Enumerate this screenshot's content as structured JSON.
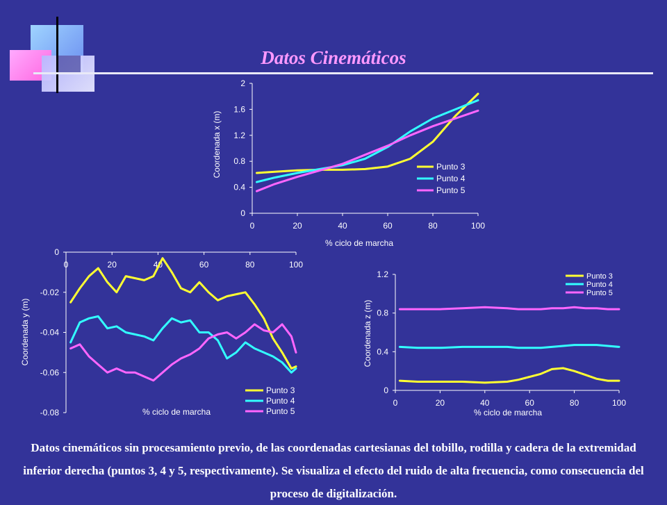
{
  "slide": {
    "title": "Datos Cinemáticos",
    "caption": "Datos cinemáticos sin procesamiento previo, de las coordenadas cartesianas del tobillo, rodilla y cadera de la extremidad inferior derecha (puntos 3, 4 y 5, respectivamente). Se visualiza el efecto del ruido de alta frecuencia, como consecuencia del proceso de digitalización.",
    "colors": {
      "background": "#333399",
      "title": "#ff99ff",
      "text": "#ffffff"
    }
  },
  "chart_data": [
    {
      "type": "line",
      "title": "",
      "xlabel": "% ciclo de marcha",
      "ylabel": "Coordenada x (m)",
      "xlim": [
        0,
        100
      ],
      "ylim": [
        0,
        2
      ],
      "xticks": [
        0,
        20,
        40,
        60,
        80,
        100
      ],
      "yticks": [
        0,
        0.4,
        0.8,
        1.2,
        1.6,
        2
      ],
      "xtick_labels": [
        "0",
        "20",
        "40",
        "60",
        "80",
        "100"
      ],
      "ytick_labels": [
        "0",
        "0.4",
        "0.8",
        "1.2",
        "1.6",
        "2"
      ],
      "grid": false,
      "legend_position": "right",
      "x": [
        2,
        10,
        20,
        30,
        40,
        50,
        60,
        70,
        80,
        90,
        100
      ],
      "series": [
        {
          "name": "Punto 3",
          "color": "#ffff33",
          "values": [
            0.62,
            0.64,
            0.66,
            0.67,
            0.67,
            0.68,
            0.72,
            0.84,
            1.1,
            1.5,
            1.84
          ]
        },
        {
          "name": "Punto 4",
          "color": "#33ffff",
          "values": [
            0.48,
            0.55,
            0.62,
            0.68,
            0.74,
            0.84,
            1.02,
            1.26,
            1.46,
            1.6,
            1.74
          ]
        },
        {
          "name": "Punto 5",
          "color": "#ff66ff",
          "values": [
            0.34,
            0.45,
            0.56,
            0.66,
            0.76,
            0.9,
            1.04,
            1.2,
            1.34,
            1.46,
            1.58
          ]
        }
      ]
    },
    {
      "type": "line",
      "title": "",
      "xlabel": "% ciclo de marcha",
      "ylabel": "Coordenada y (m)",
      "xlim": [
        0,
        100
      ],
      "ylim": [
        -0.08,
        0
      ],
      "xticks": [
        0,
        20,
        40,
        60,
        80,
        100
      ],
      "yticks": [
        0,
        -0.02,
        -0.04,
        -0.06,
        -0.08
      ],
      "xtick_labels": [
        "0",
        "20",
        "40",
        "60",
        "80",
        "100"
      ],
      "ytick_labels": [
        "0",
        "-0.02",
        "-0.04",
        "-0.06",
        "-0.08"
      ],
      "grid": false,
      "legend_position": "bottom-right",
      "x": [
        2,
        6,
        10,
        14,
        18,
        22,
        26,
        30,
        34,
        38,
        42,
        46,
        50,
        54,
        58,
        62,
        66,
        70,
        74,
        78,
        82,
        86,
        90,
        94,
        98,
        100
      ],
      "series": [
        {
          "name": "Punto 3",
          "color": "#ffff33",
          "values": [
            -0.025,
            -0.018,
            -0.012,
            -0.008,
            -0.015,
            -0.02,
            -0.012,
            -0.013,
            -0.014,
            -0.012,
            -0.003,
            -0.01,
            -0.018,
            -0.02,
            -0.015,
            -0.02,
            -0.024,
            -0.022,
            -0.021,
            -0.02,
            -0.026,
            -0.033,
            -0.043,
            -0.05,
            -0.058,
            -0.057
          ]
        },
        {
          "name": "Punto 4",
          "color": "#33ffff",
          "values": [
            -0.045,
            -0.035,
            -0.033,
            -0.032,
            -0.038,
            -0.037,
            -0.04,
            -0.041,
            -0.042,
            -0.044,
            -0.038,
            -0.033,
            -0.035,
            -0.034,
            -0.04,
            -0.04,
            -0.044,
            -0.053,
            -0.05,
            -0.045,
            -0.048,
            -0.05,
            -0.052,
            -0.055,
            -0.06,
            -0.058
          ]
        },
        {
          "name": "Punto 5",
          "color": "#ff66ff",
          "values": [
            -0.048,
            -0.046,
            -0.052,
            -0.056,
            -0.06,
            -0.058,
            -0.06,
            -0.06,
            -0.062,
            -0.064,
            -0.06,
            -0.056,
            -0.053,
            -0.051,
            -0.048,
            -0.043,
            -0.041,
            -0.04,
            -0.043,
            -0.04,
            -0.036,
            -0.039,
            -0.04,
            -0.036,
            -0.042,
            -0.05
          ]
        }
      ]
    },
    {
      "type": "line",
      "title": "",
      "xlabel": "% ciclo de marcha",
      "ylabel": "Coordenada z (m)",
      "xlim": [
        0,
        100
      ],
      "ylim": [
        0,
        1.2
      ],
      "xticks": [
        0,
        20,
        40,
        60,
        80,
        100
      ],
      "yticks": [
        0,
        0.4,
        0.8,
        1.2
      ],
      "xtick_labels": [
        "0",
        "20",
        "40",
        "60",
        "80",
        "100"
      ],
      "ytick_labels": [
        "0",
        "0.4",
        "0.8",
        "1.2"
      ],
      "grid": false,
      "legend_position": "top-right",
      "x": [
        2,
        10,
        20,
        30,
        40,
        50,
        55,
        60,
        65,
        70,
        75,
        80,
        85,
        90,
        95,
        100
      ],
      "series": [
        {
          "name": "Punto 3",
          "color": "#ffff33",
          "values": [
            0.1,
            0.09,
            0.09,
            0.09,
            0.08,
            0.09,
            0.11,
            0.14,
            0.17,
            0.22,
            0.23,
            0.2,
            0.16,
            0.12,
            0.1,
            0.1
          ]
        },
        {
          "name": "Punto 4",
          "color": "#33ffff",
          "values": [
            0.45,
            0.44,
            0.44,
            0.45,
            0.45,
            0.45,
            0.44,
            0.44,
            0.44,
            0.45,
            0.46,
            0.47,
            0.47,
            0.47,
            0.46,
            0.45
          ]
        },
        {
          "name": "Punto 5",
          "color": "#ff66ff",
          "values": [
            0.84,
            0.84,
            0.84,
            0.85,
            0.86,
            0.85,
            0.84,
            0.84,
            0.84,
            0.85,
            0.85,
            0.86,
            0.85,
            0.85,
            0.84,
            0.84
          ]
        }
      ]
    }
  ]
}
